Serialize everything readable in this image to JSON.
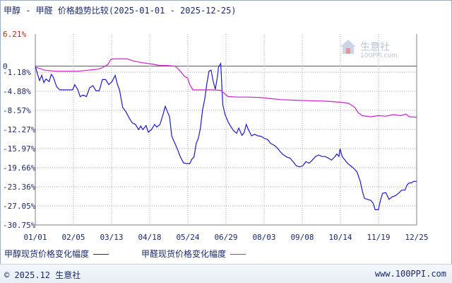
{
  "header": {
    "title": "甲醇 - 甲醛 价格趋势比较(2025-01-01 - 2025-12-25)"
  },
  "watermark": {
    "name": "生意社",
    "url": "100PPI.com"
  },
  "footer": {
    "copyright": "© 2025.12 生意社",
    "website": "www.100PPI.com"
  },
  "colors": {
    "methanol": "#1c1cc8",
    "formaldehyde": "#cc22cc",
    "axis": "#7f7f7f",
    "grid": "#a0a0a0",
    "top_label": "#cc2200",
    "label": "#1a2a6c"
  },
  "chart_data": {
    "type": "line",
    "title": "甲醇 - 甲醛 价格趋势比较(2025-01-01 - 2025-12-25)",
    "xlabel": "",
    "ylabel": "",
    "x_ticks": [
      "01/01",
      "02/05",
      "03/13",
      "04/18",
      "05/24",
      "06/29",
      "08/03",
      "09/08",
      "10/14",
      "11/19",
      "12/25"
    ],
    "y_ticks": [
      "6.21%",
      "0",
      "-1.18%",
      "-4.88%",
      "-8.57%",
      "-12.27%",
      "-15.97%",
      "-19.66%",
      "-23.36%",
      "-27.05%",
      "-30.75%"
    ],
    "ylim": [
      -30.75,
      6.21
    ],
    "xlim": [
      "2025-01-01",
      "2025-12-25"
    ],
    "grid": true,
    "legend_position": "bottom-left",
    "series": [
      {
        "name": "甲醇现货价格变化幅度",
        "color": "#1c1cc8",
        "points": [
          [
            "2025-01-01",
            0.0
          ],
          [
            "2025-01-03",
            -1.5
          ],
          [
            "2025-01-05",
            -2.8
          ],
          [
            "2025-01-07",
            -1.8
          ],
          [
            "2025-01-09",
            -3.2
          ],
          [
            "2025-01-11",
            -2.5
          ],
          [
            "2025-01-14",
            -3.0
          ],
          [
            "2025-01-16",
            -1.6
          ],
          [
            "2025-01-18",
            -2.2
          ],
          [
            "2025-01-21",
            -4.0
          ],
          [
            "2025-01-24",
            -4.6
          ],
          [
            "2025-01-28",
            -4.6
          ],
          [
            "2025-02-01",
            -4.6
          ],
          [
            "2025-02-05",
            -4.6
          ],
          [
            "2025-02-07",
            -3.6
          ],
          [
            "2025-02-10",
            -4.6
          ],
          [
            "2025-02-12",
            -5.9
          ],
          [
            "2025-02-15",
            -5.6
          ],
          [
            "2025-02-18",
            -5.9
          ],
          [
            "2025-02-21",
            -4.2
          ],
          [
            "2025-02-24",
            -3.8
          ],
          [
            "2025-02-27",
            -4.8
          ],
          [
            "2025-03-02",
            -4.8
          ],
          [
            "2025-03-05",
            -2.6
          ],
          [
            "2025-03-08",
            -2.6
          ],
          [
            "2025-03-11",
            -3.6
          ],
          [
            "2025-03-14",
            -3.0
          ],
          [
            "2025-03-17",
            -1.8
          ],
          [
            "2025-03-19",
            -3.5
          ],
          [
            "2025-03-21",
            -4.6
          ],
          [
            "2025-03-24",
            -8.0
          ],
          [
            "2025-03-27",
            -8.8
          ],
          [
            "2025-03-30",
            -10.0
          ],
          [
            "2025-04-02",
            -11.0
          ],
          [
            "2025-04-05",
            -11.3
          ],
          [
            "2025-04-08",
            -12.3
          ],
          [
            "2025-04-10",
            -11.6
          ],
          [
            "2025-04-12",
            -12.3
          ],
          [
            "2025-04-15",
            -11.5
          ],
          [
            "2025-04-17",
            -12.8
          ],
          [
            "2025-04-20",
            -12.3
          ],
          [
            "2025-04-23",
            -11.3
          ],
          [
            "2025-04-25",
            -11.8
          ],
          [
            "2025-04-28",
            -11.3
          ],
          [
            "2025-05-01",
            -9.3
          ],
          [
            "2025-05-03",
            -7.8
          ],
          [
            "2025-05-05",
            -8.8
          ],
          [
            "2025-05-07",
            -9.8
          ],
          [
            "2025-05-09",
            -13.5
          ],
          [
            "2025-05-11",
            -14.5
          ],
          [
            "2025-05-13",
            -15.4
          ],
          [
            "2025-05-15",
            -16.4
          ],
          [
            "2025-05-17",
            -17.5
          ],
          [
            "2025-05-20",
            -18.7
          ],
          [
            "2025-05-23",
            -18.9
          ],
          [
            "2025-05-26",
            -18.9
          ],
          [
            "2025-05-28",
            -18.0
          ],
          [
            "2025-05-30",
            -17.6
          ],
          [
            "2025-06-01",
            -15.0
          ],
          [
            "2025-06-03",
            -14.0
          ],
          [
            "2025-06-05",
            -12.0
          ],
          [
            "2025-06-07",
            -8.5
          ],
          [
            "2025-06-09",
            -6.5
          ],
          [
            "2025-06-11",
            -3.5
          ],
          [
            "2025-06-13",
            -1.0
          ],
          [
            "2025-06-15",
            -0.8
          ],
          [
            "2025-06-17",
            -3.0
          ],
          [
            "2025-06-19",
            -4.5
          ],
          [
            "2025-06-21",
            -2.0
          ],
          [
            "2025-06-22",
            -0.2
          ],
          [
            "2025-06-24",
            0.5
          ],
          [
            "2025-06-26",
            -7.5
          ],
          [
            "2025-06-28",
            -9.3
          ],
          [
            "2025-07-01",
            -10.8
          ],
          [
            "2025-07-03",
            -11.5
          ],
          [
            "2025-07-06",
            -12.5
          ],
          [
            "2025-07-09",
            -13.0
          ],
          [
            "2025-07-11",
            -12.0
          ],
          [
            "2025-07-14",
            -13.4
          ],
          [
            "2025-07-16",
            -12.9
          ],
          [
            "2025-07-18",
            -11.3
          ],
          [
            "2025-07-20",
            -12.3
          ],
          [
            "2025-07-23",
            -13.5
          ],
          [
            "2025-07-26",
            -13.2
          ],
          [
            "2025-07-29",
            -13.5
          ],
          [
            "2025-08-01",
            -13.6
          ],
          [
            "2025-08-04",
            -14.0
          ],
          [
            "2025-08-07",
            -14.2
          ],
          [
            "2025-08-10",
            -15.0
          ],
          [
            "2025-08-13",
            -15.3
          ],
          [
            "2025-08-16",
            -15.8
          ],
          [
            "2025-08-19",
            -16.6
          ],
          [
            "2025-08-22",
            -17.2
          ],
          [
            "2025-08-25",
            -17.6
          ],
          [
            "2025-08-28",
            -17.8
          ],
          [
            "2025-08-31",
            -18.5
          ],
          [
            "2025-09-03",
            -19.3
          ],
          [
            "2025-09-06",
            -19.5
          ],
          [
            "2025-09-09",
            -19.3
          ],
          [
            "2025-09-12",
            -18.5
          ],
          [
            "2025-09-15",
            -18.8
          ],
          [
            "2025-09-18",
            -18.2
          ],
          [
            "2025-09-21",
            -17.5
          ],
          [
            "2025-09-24",
            -17.2
          ],
          [
            "2025-09-27",
            -17.5
          ],
          [
            "2025-09-30",
            -17.5
          ],
          [
            "2025-10-03",
            -17.8
          ],
          [
            "2025-10-06",
            -18.2
          ],
          [
            "2025-10-09",
            -17.6
          ],
          [
            "2025-10-11",
            -17.0
          ],
          [
            "2025-10-13",
            -17.5
          ],
          [
            "2025-10-14",
            -16.0
          ],
          [
            "2025-10-16",
            -17.5
          ],
          [
            "2025-10-18",
            -18.0
          ],
          [
            "2025-10-21",
            -18.8
          ],
          [
            "2025-10-24",
            -19.3
          ],
          [
            "2025-10-27",
            -19.8
          ],
          [
            "2025-10-30",
            -20.5
          ],
          [
            "2025-11-02",
            -22.3
          ],
          [
            "2025-11-04",
            -24.2
          ],
          [
            "2025-11-06",
            -25.6
          ],
          [
            "2025-11-09",
            -25.8
          ],
          [
            "2025-11-12",
            -26.0
          ],
          [
            "2025-11-14",
            -26.5
          ],
          [
            "2025-11-16",
            -27.8
          ],
          [
            "2025-11-19",
            -27.8
          ],
          [
            "2025-11-21",
            -26.0
          ],
          [
            "2025-11-23",
            -24.6
          ],
          [
            "2025-11-26",
            -24.5
          ],
          [
            "2025-11-29",
            -25.8
          ],
          [
            "2025-12-02",
            -25.3
          ],
          [
            "2025-12-05",
            -25.1
          ],
          [
            "2025-12-08",
            -24.6
          ],
          [
            "2025-12-11",
            -24.0
          ],
          [
            "2025-12-14",
            -24.0
          ],
          [
            "2025-12-16",
            -23.0
          ],
          [
            "2025-12-18",
            -22.6
          ],
          [
            "2025-12-20",
            -22.6
          ],
          [
            "2025-12-22",
            -22.3
          ],
          [
            "2025-12-25",
            -22.3
          ]
        ]
      },
      {
        "name": "甲醛现货价格变化幅度",
        "color": "#cc22cc",
        "points": [
          [
            "2025-01-01",
            -0.2
          ],
          [
            "2025-01-10",
            -0.8
          ],
          [
            "2025-01-20",
            -1.0
          ],
          [
            "2025-02-01",
            -1.0
          ],
          [
            "2025-02-10",
            -1.0
          ],
          [
            "2025-02-20",
            -0.8
          ],
          [
            "2025-03-01",
            -0.6
          ],
          [
            "2025-03-05",
            -0.3
          ],
          [
            "2025-03-10",
            0.3
          ],
          [
            "2025-03-13",
            1.3
          ],
          [
            "2025-03-16",
            1.4
          ],
          [
            "2025-03-28",
            1.4
          ],
          [
            "2025-04-03",
            1.0
          ],
          [
            "2025-04-10",
            0.7
          ],
          [
            "2025-04-20",
            0.4
          ],
          [
            "2025-04-28",
            0.1
          ],
          [
            "2025-05-05",
            0.1
          ],
          [
            "2025-05-12",
            0.0
          ],
          [
            "2025-05-15",
            -0.5
          ],
          [
            "2025-05-18",
            -1.2
          ],
          [
            "2025-05-21",
            -2.0
          ],
          [
            "2025-05-24",
            -2.3
          ],
          [
            "2025-05-26",
            -3.6
          ],
          [
            "2025-05-29",
            -4.6
          ],
          [
            "2025-06-03",
            -4.6
          ],
          [
            "2025-06-10",
            -4.6
          ],
          [
            "2025-06-17",
            -4.6
          ],
          [
            "2025-06-24",
            -4.7
          ],
          [
            "2025-07-01",
            -5.9
          ],
          [
            "2025-07-10",
            -6.0
          ],
          [
            "2025-07-20",
            -6.0
          ],
          [
            "2025-08-01",
            -6.1
          ],
          [
            "2025-08-10",
            -6.3
          ],
          [
            "2025-08-20",
            -6.5
          ],
          [
            "2025-09-01",
            -6.6
          ],
          [
            "2025-09-15",
            -6.7
          ],
          [
            "2025-10-01",
            -6.8
          ],
          [
            "2025-10-15",
            -7.0
          ],
          [
            "2025-10-22",
            -7.2
          ],
          [
            "2025-10-25",
            -7.6
          ],
          [
            "2025-10-28",
            -8.0
          ],
          [
            "2025-10-31",
            -9.0
          ],
          [
            "2025-11-04",
            -9.6
          ],
          [
            "2025-11-12",
            -9.8
          ],
          [
            "2025-11-19",
            -9.6
          ],
          [
            "2025-11-26",
            -9.7
          ],
          [
            "2025-12-03",
            -9.4
          ],
          [
            "2025-12-10",
            -9.6
          ],
          [
            "2025-12-15",
            -9.3
          ],
          [
            "2025-12-18",
            -9.8
          ],
          [
            "2025-12-25",
            -9.9
          ]
        ]
      }
    ]
  }
}
